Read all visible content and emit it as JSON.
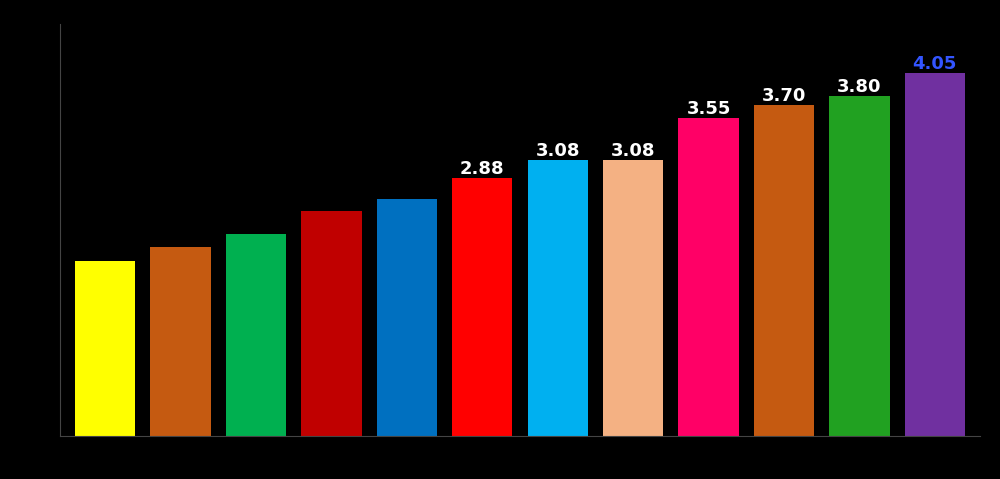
{
  "chart_data": {
    "type": "bar",
    "categories": [
      null,
      null,
      null,
      null,
      null,
      null,
      null,
      null,
      null,
      null,
      null,
      null
    ],
    "values": [
      1.95,
      2.11,
      2.25,
      2.51,
      2.65,
      2.88,
      3.08,
      3.08,
      3.55,
      3.7,
      3.8,
      4.05
    ],
    "value_labels": [
      null,
      null,
      null,
      null,
      null,
      "2.88",
      "3.08",
      "3.08",
      "3.55",
      "3.70",
      "3.80",
      "4.05"
    ],
    "colors": [
      "#ffff00",
      "#c55a11",
      "#00b050",
      "#c00000",
      "#0070c0",
      "#ff0000",
      "#00b0f0",
      "#f4b183",
      "#ff0066",
      "#c55a11",
      "#21a121",
      "#7030a0"
    ],
    "data_labels": true,
    "tick_labels": false,
    "ylim": [
      0,
      4.6
    ],
    "grid": false
  }
}
